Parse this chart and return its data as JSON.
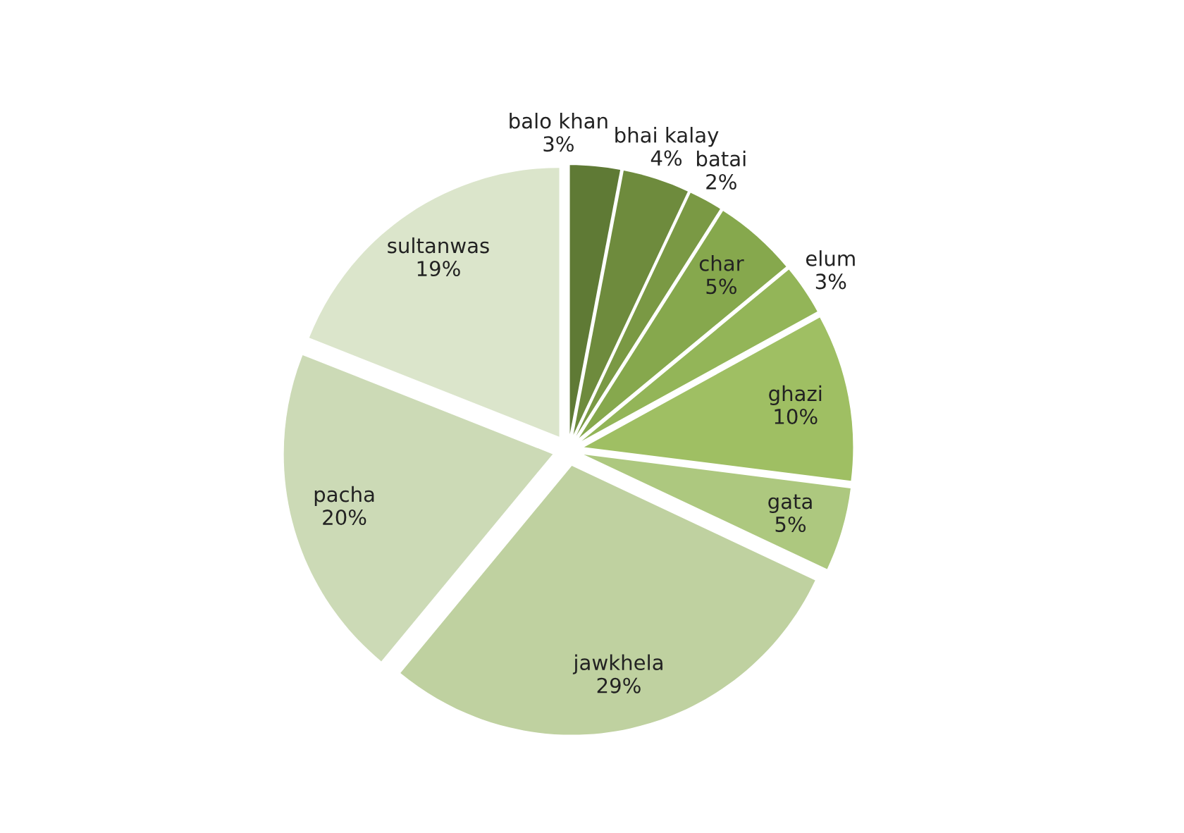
{
  "chart_data": {
    "type": "pie",
    "categories": [
      "balo khan",
      "bhai kalay",
      "batai",
      "char",
      "elum",
      "ghazi",
      "gata",
      "jawkhela",
      "pacha",
      "sultanwas"
    ],
    "values": [
      3,
      4,
      2,
      5,
      3,
      10,
      5,
      29,
      20,
      19
    ],
    "value_labels": [
      "3%",
      "4%",
      "2%",
      "5%",
      "3%",
      "10%",
      "5%",
      "29%",
      "20%",
      "19%"
    ],
    "colors": [
      "#5f7a35",
      "#6e8b3d",
      "#7a9944",
      "#86a84d",
      "#93b558",
      "#9fbf63",
      "#adc87f",
      "#bfd1a0",
      "#ccdab6",
      "#dbe5cb"
    ],
    "legend": false
  }
}
